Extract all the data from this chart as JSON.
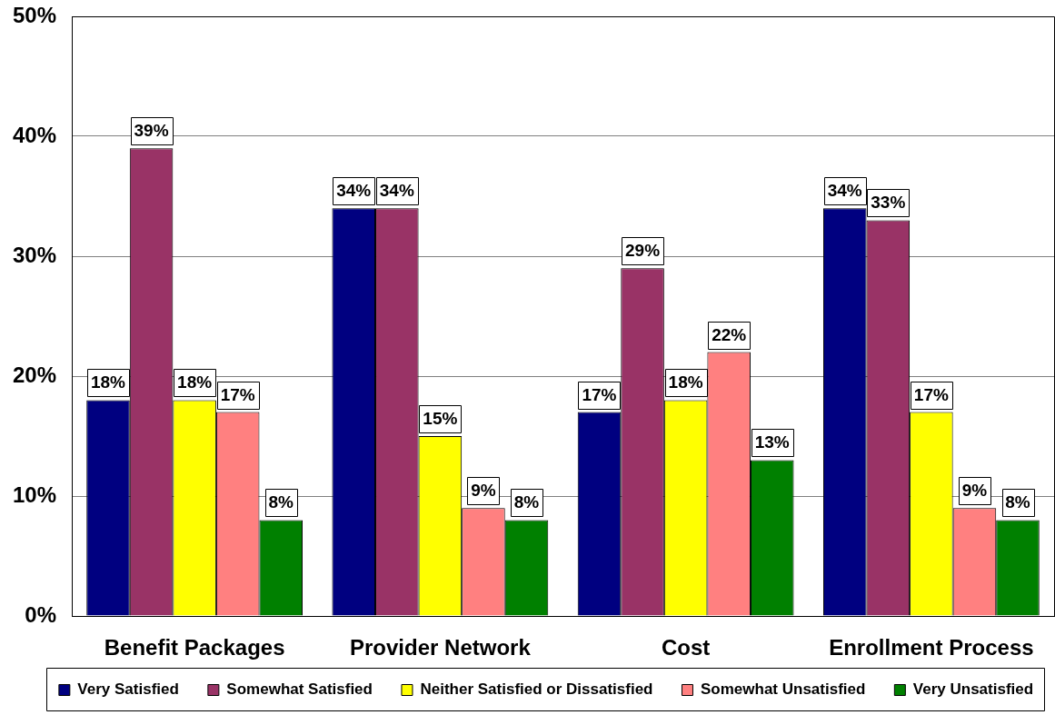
{
  "chart_data": {
    "type": "bar",
    "categories": [
      "Benefit Packages",
      "Provider Network",
      "Cost",
      "Enrollment Process"
    ],
    "series": [
      {
        "name": "Very Satisfied",
        "color": "#000080",
        "values": [
          18,
          34,
          17,
          34
        ],
        "value_labels": [
          "18%",
          "34%",
          "17%",
          "34%"
        ]
      },
      {
        "name": "Somewhat Satisfied",
        "color": "#993366",
        "values": [
          39,
          34,
          29,
          33
        ],
        "value_labels": [
          "39%",
          "34%",
          "29%",
          "33%"
        ]
      },
      {
        "name": "Neither Satisfied or Dissatisfied",
        "color": "#ffff00",
        "values": [
          18,
          15,
          18,
          17
        ],
        "value_labels": [
          "18%",
          "15%",
          "18%",
          "17%"
        ]
      },
      {
        "name": "Somewhat Unsatisfied",
        "color": "#ff8080",
        "values": [
          17,
          9,
          22,
          9
        ],
        "value_labels": [
          "17%",
          "9%",
          "22%",
          "9%"
        ]
      },
      {
        "name": "Very Unsatisfied",
        "color": "#008000",
        "values": [
          8,
          8,
          13,
          8
        ],
        "value_labels": [
          "8%",
          "8%",
          "13%",
          "8%"
        ]
      }
    ],
    "ylim": [
      0,
      50
    ],
    "yticks": [
      {
        "value": 0,
        "label": "0%"
      },
      {
        "value": 10,
        "label": "10%"
      },
      {
        "value": 20,
        "label": "20%"
      },
      {
        "value": 30,
        "label": "30%"
      },
      {
        "value": 40,
        "label": "40%"
      },
      {
        "value": 50,
        "label": "50%"
      }
    ],
    "grid": "y",
    "legend": "bottom"
  }
}
